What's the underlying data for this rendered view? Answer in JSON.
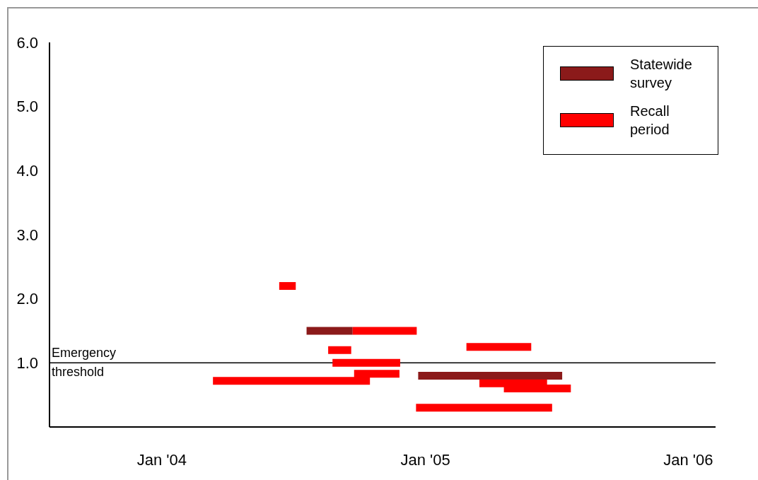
{
  "chart_data": {
    "type": "line",
    "xlim": [
      "2003-07-29",
      "2006-02-08"
    ],
    "xticks": [
      {
        "value": "2004-01-01",
        "label": "Jan '04"
      },
      {
        "value": "2005-01-01",
        "label": "Jan '05"
      },
      {
        "value": "2006-01-01",
        "label": "Jan '06"
      }
    ],
    "ylim": [
      0,
      6
    ],
    "yticks": [
      {
        "value": 1,
        "label": "1.0"
      },
      {
        "value": 2,
        "label": "2.0"
      },
      {
        "value": 3,
        "label": "3.0"
      },
      {
        "value": 4,
        "label": "4.0"
      },
      {
        "value": 5,
        "label": "5.0"
      },
      {
        "value": 6,
        "label": "6.0"
      }
    ],
    "grid": false,
    "legend": "top right",
    "marker": "none",
    "line_style": "solid",
    "ref_lines": [
      {
        "axis": "y",
        "value": 1,
        "label": "Emergency threshold",
        "color": "#000000"
      }
    ],
    "series": [
      {
        "name": "Statewide survey",
        "color": "#8b1a1a",
        "x": [
          "2004-07-20",
          "2004-09-22"
        ],
        "values": [
          1.5,
          1.5
        ]
      },
      {
        "color": "#8b1a1a",
        "x": [
          "2004-12-22",
          "2005-07-10"
        ],
        "values": [
          0.8,
          0.8
        ]
      },
      {
        "name": "Recall period",
        "color": "#ff0000",
        "x": [
          "2004-06-12",
          "2004-07-05"
        ],
        "values": [
          2.2,
          2.2
        ]
      },
      {
        "color": "#ff0000",
        "x": [
          "2004-09-22",
          "2004-12-20"
        ],
        "values": [
          1.5,
          1.5
        ]
      },
      {
        "color": "#ff0000",
        "x": [
          "2004-08-19",
          "2004-09-20"
        ],
        "values": [
          1.2,
          1.2
        ]
      },
      {
        "color": "#ff0000",
        "x": [
          "2004-08-25",
          "2004-11-27"
        ],
        "values": [
          1.0,
          1.0
        ]
      },
      {
        "color": "#ff0000",
        "x": [
          "2004-09-24",
          "2004-11-26"
        ],
        "values": [
          0.83,
          0.83
        ]
      },
      {
        "color": "#ff0000",
        "x": [
          "2004-03-12",
          "2004-10-16"
        ],
        "values": [
          0.72,
          0.72
        ]
      },
      {
        "color": "#ff0000",
        "x": [
          "2005-02-27",
          "2005-05-28"
        ],
        "values": [
          1.25,
          1.25
        ]
      },
      {
        "color": "#ff0000",
        "x": [
          "2005-03-17",
          "2005-06-19"
        ],
        "values": [
          0.68,
          0.68
        ]
      },
      {
        "color": "#ff0000",
        "x": [
          "2005-04-20",
          "2005-07-22"
        ],
        "values": [
          0.6,
          0.6
        ]
      },
      {
        "color": "#ff0000",
        "x": [
          "2004-12-19",
          "2005-06-26"
        ],
        "values": [
          0.3,
          0.3
        ]
      }
    ]
  }
}
